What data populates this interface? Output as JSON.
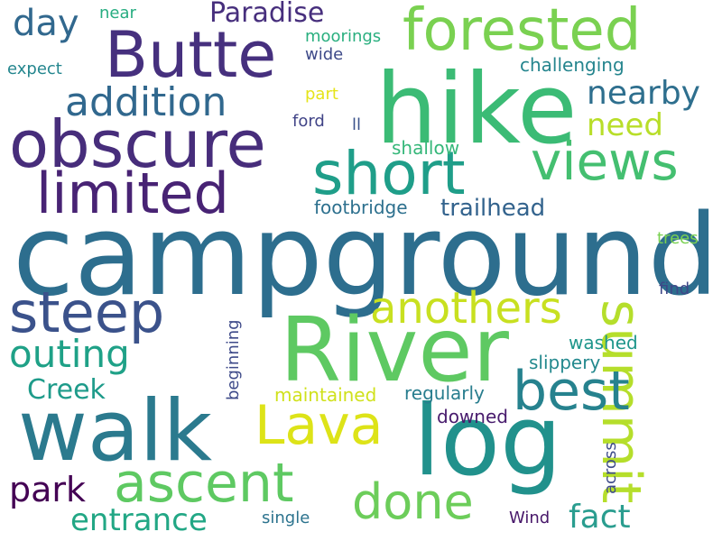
{
  "words": [
    {
      "text": "campground",
      "color": "#2d6e8e"
    },
    {
      "text": "hike",
      "color": "#3bbb75"
    },
    {
      "text": "River",
      "color": "#5ec962"
    },
    {
      "text": "walk",
      "color": "#2b7a8e"
    },
    {
      "text": "log",
      "color": "#21918c"
    },
    {
      "text": "forested",
      "color": "#7ad151"
    },
    {
      "text": "Butte",
      "color": "#46307e"
    },
    {
      "text": "obscure",
      "color": "#472d7b"
    },
    {
      "text": "summit",
      "color": "#b5de2b"
    },
    {
      "text": "short",
      "color": "#1f9e89"
    },
    {
      "text": "limited",
      "color": "#482374"
    },
    {
      "text": "steep",
      "color": "#3b528b"
    },
    {
      "text": "views",
      "color": "#44bf70"
    },
    {
      "text": "best",
      "color": "#26828e"
    },
    {
      "text": "ascent",
      "color": "#5ec962"
    },
    {
      "text": "Lava",
      "color": "#dde318"
    },
    {
      "text": "done",
      "color": "#6ccd5a"
    },
    {
      "text": "addition",
      "color": "#31688e"
    },
    {
      "text": "anothers",
      "color": "#c8e020"
    },
    {
      "text": "outing",
      "color": "#1fa187"
    },
    {
      "text": "day",
      "color": "#31688e"
    },
    {
      "text": "nearby",
      "color": "#2e6f8e"
    },
    {
      "text": "Paradise",
      "color": "#472f7d"
    },
    {
      "text": "park",
      "color": "#440154"
    },
    {
      "text": "entrance",
      "color": "#22a785"
    },
    {
      "text": "fact",
      "color": "#2a9d8f"
    },
    {
      "text": "Creek",
      "color": "#1e9b8a"
    },
    {
      "text": "need",
      "color": "#b8de29"
    },
    {
      "text": "trailhead",
      "color": "#33638d"
    },
    {
      "text": "footbridge",
      "color": "#2d708e"
    },
    {
      "text": "challenging",
      "color": "#25858e"
    },
    {
      "text": "maintained",
      "color": "#d0e11c"
    },
    {
      "text": "regularly",
      "color": "#287d8e"
    },
    {
      "text": "slippery",
      "color": "#23898e"
    },
    {
      "text": "washed",
      "color": "#1f968b"
    },
    {
      "text": "shallow",
      "color": "#35b779"
    },
    {
      "text": "downed",
      "color": "#481b6d"
    },
    {
      "text": "moorings",
      "color": "#29af7f"
    },
    {
      "text": "beginning",
      "color": "#3e4a89"
    },
    {
      "text": "across",
      "color": "#3e4c8a"
    },
    {
      "text": "single",
      "color": "#2c738e"
    },
    {
      "text": "Wind",
      "color": "#48186a"
    },
    {
      "text": "trees",
      "color": "#7ad151"
    },
    {
      "text": "find",
      "color": "#3f4788"
    },
    {
      "text": "expect",
      "color": "#24868e"
    },
    {
      "text": "near",
      "color": "#27ad81"
    },
    {
      "text": "wide",
      "color": "#3e4a89"
    },
    {
      "text": "part",
      "color": "#e5e419"
    },
    {
      "text": "ford",
      "color": "#414487"
    },
    {
      "text": "ll",
      "color": "#3b528b"
    }
  ]
}
